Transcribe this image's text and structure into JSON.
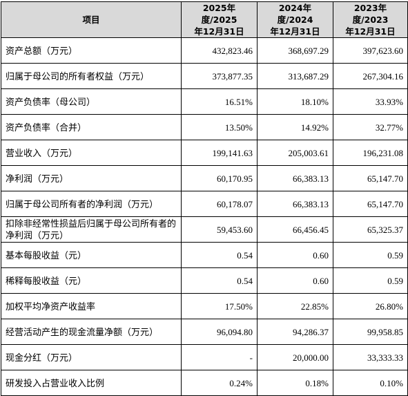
{
  "table": {
    "header": [
      "项目",
      [
        "2025年度/2025",
        "年12月31日"
      ],
      [
        "2024年度/2024",
        "年12月31日"
      ],
      [
        "2023年度/2023",
        "年12月31日"
      ]
    ],
    "rows": [
      [
        "资产总额（万元）",
        "432,823.46",
        "368,697.29",
        "397,623.60"
      ],
      [
        "归属于母公司的所有者权益（万元）",
        "373,877.35",
        "313,687.29",
        "267,304.16"
      ],
      [
        "资产负债率（母公司）",
        "16.51%",
        "18.10%",
        "33.93%"
      ],
      [
        "资产负债率（合并）",
        "13.50%",
        "14.92%",
        "32.77%"
      ],
      [
        "营业收入（万元）",
        "199,141.63",
        "205,003.61",
        "196,231.08"
      ],
      [
        "净利润（万元）",
        "60,170.95",
        "66,383.13",
        "65,147.70"
      ],
      [
        "归属于母公司所有者的净利润（万元）",
        "60,178.07",
        "66,383.13",
        "65,147.70"
      ],
      [
        "扣除非经常性损益后归属于母公司所有者的净利润（万元）",
        "59,453.60",
        "66,456.45",
        "65,325.37"
      ],
      [
        "基本每股收益（元）",
        "0.54",
        "0.60",
        "0.59"
      ],
      [
        "稀释每股收益（元）",
        "0.54",
        "0.60",
        "0.59"
      ],
      [
        "加权平均净资产收益率",
        "17.50%",
        "22.85%",
        "26.80%"
      ],
      [
        "经营活动产生的现金流量净额（万元）",
        "96,094.80",
        "94,286.37",
        "99,958.85"
      ],
      [
        "现金分红（万元）",
        "-",
        "20,000.00",
        "33,333.33"
      ],
      [
        "研发投入占营业收入比例",
        "0.24%",
        "0.18%",
        "0.10%"
      ]
    ]
  }
}
